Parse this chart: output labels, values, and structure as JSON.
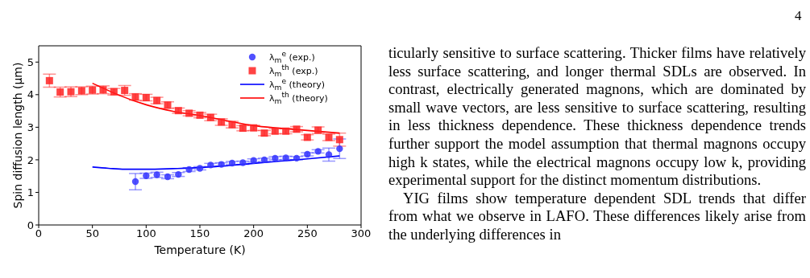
{
  "chart_data": {
    "type": "scatter",
    "xlabel": "Temperature (K)",
    "ylabel": "Spin diffusion length (μm)",
    "xlim": [
      0,
      300
    ],
    "xticks": [
      0,
      50,
      100,
      150,
      200,
      250,
      300
    ],
    "ylim": [
      0,
      5.5
    ],
    "yticks": [
      0,
      1,
      2,
      3,
      4,
      5
    ],
    "legend": "top right",
    "grid": false,
    "series": [
      {
        "name": "λ$_{m}$$^{e}$ (exp.)",
        "marker": "circle",
        "color": "#3333ff",
        "x": [
          90,
          100,
          110,
          120,
          130,
          140,
          150,
          160,
          170,
          180,
          190,
          200,
          210,
          220,
          230,
          240,
          250,
          260,
          270,
          280
        ],
        "values": [
          1.33,
          1.51,
          1.54,
          1.48,
          1.55,
          1.7,
          1.74,
          1.84,
          1.86,
          1.9,
          1.91,
          1.98,
          2.0,
          2.05,
          2.06,
          2.05,
          2.17,
          2.26,
          2.16,
          2.34
        ],
        "errors": [
          0.25,
          0.08,
          0.08,
          0.06,
          0.06,
          0.06,
          0.05,
          0.05,
          0.05,
          0.05,
          0.05,
          0.05,
          0.05,
          0.05,
          0.05,
          0.05,
          0.05,
          0.05,
          0.2,
          0.3
        ]
      },
      {
        "name": "λ$_{m}$$^{th}$ (exp.)",
        "marker": "square",
        "color": "#ff2222",
        "x": [
          10,
          20,
          30,
          40,
          50,
          60,
          70,
          80,
          90,
          100,
          110,
          120,
          130,
          140,
          150,
          160,
          170,
          180,
          190,
          200,
          210,
          220,
          230,
          240,
          250,
          260,
          270,
          280
        ],
        "values": [
          4.43,
          4.08,
          4.09,
          4.12,
          4.14,
          4.15,
          4.09,
          4.13,
          3.93,
          3.91,
          3.82,
          3.68,
          3.51,
          3.43,
          3.37,
          3.3,
          3.16,
          3.08,
          2.97,
          2.98,
          2.82,
          2.88,
          2.88,
          2.94,
          2.69,
          2.91,
          2.69,
          2.62
        ],
        "errors": [
          0.2,
          0.15,
          0.15,
          0.12,
          0.12,
          0.12,
          0.1,
          0.15,
          0.1,
          0.1,
          0.1,
          0.1,
          0.08,
          0.08,
          0.08,
          0.1,
          0.1,
          0.1,
          0.08,
          0.08,
          0.08,
          0.08,
          0.08,
          0.08,
          0.08,
          0.1,
          0.1,
          0.2
        ]
      },
      {
        "name": "λ$_{m}$$^{e}$ (theory)",
        "type": "line",
        "marker": "none",
        "line_style": "solid",
        "color": "#0000ff",
        "x": [
          50,
          65,
          80,
          100,
          125,
          150,
          175,
          200,
          225,
          250,
          280
        ],
        "values": [
          1.78,
          1.74,
          1.71,
          1.71,
          1.73,
          1.76,
          1.82,
          1.89,
          1.96,
          2.03,
          2.12
        ]
      },
      {
        "name": "λ$_{m}$$^{th}$ (theory)",
        "type": "line",
        "marker": "none",
        "line_style": "solid",
        "color": "#ff0000",
        "x": [
          50,
          60,
          75,
          100,
          125,
          150,
          175,
          200,
          225,
          250,
          280
        ],
        "values": [
          4.35,
          4.2,
          3.98,
          3.69,
          3.49,
          3.36,
          3.2,
          3.05,
          2.97,
          2.9,
          2.82
        ]
      }
    ],
    "annotations": [
      "4",
      "ticularly sensitive to surface scattering. Thicker films have relatively less surface scattering, and longer thermal SDLs are observed. In contrast, electrically generated magnons, which are dominated by small wave vectors, are less sensitive to surface scattering, resulting in less thickness dependence. These thickness dependence trends further support the model assumption that thermal magnons occupy high k states, while the electrical magnons occupy low k, providing experimental support for the distinct momentum distributions.",
      "YIG films show temperature dependent SDL trends that differ from what we observe in LAFO. These differences likely arise from the underlying differences in"
    ]
  }
}
